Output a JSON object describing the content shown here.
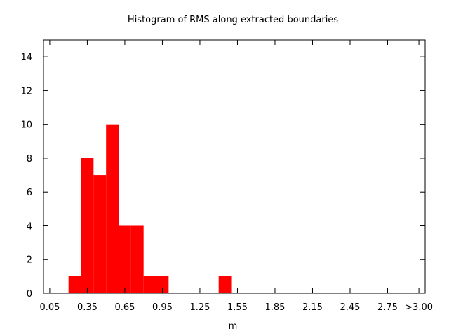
{
  "chart_data": {
    "type": "bar",
    "title": "Histogram of RMS along extracted boundaries",
    "xlabel": "m",
    "ylabel": "",
    "bar_color": "#ff0000",
    "grid": false,
    "bin_width": 0.1,
    "xlim": [
      0.0,
      3.05
    ],
    "ylim": [
      0,
      15
    ],
    "x_tick_values": [
      0.05,
      0.35,
      0.65,
      0.95,
      1.25,
      1.55,
      1.85,
      2.15,
      2.45,
      2.75,
      3.0
    ],
    "x_tick_labels": [
      "0.05",
      "0.35",
      "0.65",
      "0.95",
      "1.25",
      "1.55",
      "1.85",
      "2.15",
      "2.45",
      "2.75",
      ">3.00"
    ],
    "y_ticks": [
      0,
      2,
      4,
      6,
      8,
      10,
      12,
      14
    ],
    "bins": [
      {
        "center": 0.25,
        "count": 1
      },
      {
        "center": 0.35,
        "count": 8
      },
      {
        "center": 0.45,
        "count": 7
      },
      {
        "center": 0.55,
        "count": 10
      },
      {
        "center": 0.65,
        "count": 4
      },
      {
        "center": 0.75,
        "count": 4
      },
      {
        "center": 0.85,
        "count": 1
      },
      {
        "center": 0.95,
        "count": 1
      },
      {
        "center": 1.45,
        "count": 1
      }
    ]
  }
}
